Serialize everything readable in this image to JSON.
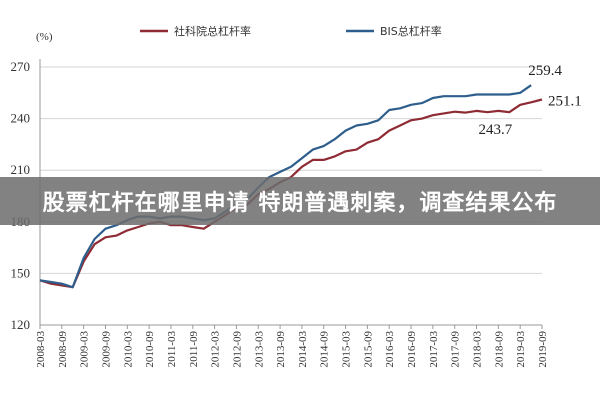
{
  "banner": {
    "text": "股票杠杆在哪里申请 特朗普遇刺案，调查结果公布"
  },
  "chart_data": {
    "type": "line",
    "unit_label": "(%)",
    "ylim": [
      120,
      270
    ],
    "yticks": [
      120,
      150,
      180,
      210,
      240,
      270
    ],
    "grid": "horizontal",
    "legend_position": "top",
    "x": [
      "2008-03",
      "2008-09",
      "2009-03",
      "2009-09",
      "2010-03",
      "2010-09",
      "2011-03",
      "2011-09",
      "2012-03",
      "2012-09",
      "2013-03",
      "2013-09",
      "2014-03",
      "2014-09",
      "2015-03",
      "2015-09",
      "2016-03",
      "2016-09",
      "2017-03",
      "2017-09",
      "2018-03",
      "2018-09",
      "2019-03",
      "2019-09"
    ],
    "series": [
      {
        "name": "社科院总杠杆率",
        "color": "#8e2b34",
        "points": [
          [
            "2008-03",
            146
          ],
          [
            "2008-06",
            144
          ],
          [
            "2008-09",
            143
          ],
          [
            "2008-12",
            142
          ],
          [
            "2009-03",
            157
          ],
          [
            "2009-06",
            167
          ],
          [
            "2009-09",
            171
          ],
          [
            "2009-12",
            172
          ],
          [
            "2010-03",
            175
          ],
          [
            "2010-06",
            177
          ],
          [
            "2010-09",
            179
          ],
          [
            "2010-12",
            180
          ],
          [
            "2011-03",
            178
          ],
          [
            "2011-06",
            178
          ],
          [
            "2011-09",
            177
          ],
          [
            "2011-12",
            176
          ],
          [
            "2012-03",
            180
          ],
          [
            "2012-06",
            184
          ],
          [
            "2012-09",
            188
          ],
          [
            "2012-12",
            190
          ],
          [
            "2013-03",
            196
          ],
          [
            "2013-06",
            199
          ],
          [
            "2013-09",
            203
          ],
          [
            "2013-12",
            206
          ],
          [
            "2014-03",
            212
          ],
          [
            "2014-06",
            216
          ],
          [
            "2014-09",
            216
          ],
          [
            "2014-12",
            218
          ],
          [
            "2015-03",
            221
          ],
          [
            "2015-06",
            222
          ],
          [
            "2015-09",
            226
          ],
          [
            "2015-12",
            228
          ],
          [
            "2016-03",
            233
          ],
          [
            "2016-06",
            236
          ],
          [
            "2016-09",
            239
          ],
          [
            "2016-12",
            240
          ],
          [
            "2017-03",
            242
          ],
          [
            "2017-06",
            243
          ],
          [
            "2017-09",
            244
          ],
          [
            "2017-12",
            243.5
          ],
          [
            "2018-03",
            244.5
          ],
          [
            "2018-06",
            243.7
          ],
          [
            "2018-09",
            244.5
          ],
          [
            "2018-12",
            243.7
          ],
          [
            "2019-03",
            248
          ],
          [
            "2019-06",
            249.5
          ],
          [
            "2019-09",
            251.1
          ]
        ]
      },
      {
        "name": "BIS总杠杆率",
        "color": "#2e5e8c",
        "points": [
          [
            "2008-03",
            146
          ],
          [
            "2008-06",
            145
          ],
          [
            "2008-09",
            144
          ],
          [
            "2008-12",
            142
          ],
          [
            "2009-03",
            159
          ],
          [
            "2009-06",
            170
          ],
          [
            "2009-09",
            176
          ],
          [
            "2009-12",
            178
          ],
          [
            "2010-03",
            181
          ],
          [
            "2010-06",
            183
          ],
          [
            "2010-09",
            183
          ],
          [
            "2010-12",
            182
          ],
          [
            "2011-03",
            183
          ],
          [
            "2011-06",
            183
          ],
          [
            "2011-09",
            182
          ],
          [
            "2011-12",
            181
          ],
          [
            "2012-03",
            182
          ],
          [
            "2012-06",
            186
          ],
          [
            "2012-09",
            190
          ],
          [
            "2012-12",
            193
          ],
          [
            "2013-03",
            200
          ],
          [
            "2013-06",
            206
          ],
          [
            "2013-09",
            209
          ],
          [
            "2013-12",
            212
          ],
          [
            "2014-03",
            217
          ],
          [
            "2014-06",
            222
          ],
          [
            "2014-09",
            224
          ],
          [
            "2014-12",
            228
          ],
          [
            "2015-03",
            233
          ],
          [
            "2015-06",
            236
          ],
          [
            "2015-09",
            237
          ],
          [
            "2015-12",
            239
          ],
          [
            "2016-03",
            245
          ],
          [
            "2016-06",
            246
          ],
          [
            "2016-09",
            248
          ],
          [
            "2016-12",
            249
          ],
          [
            "2017-03",
            252
          ],
          [
            "2017-06",
            253
          ],
          [
            "2017-09",
            253
          ],
          [
            "2017-12",
            253
          ],
          [
            "2018-03",
            254
          ],
          [
            "2018-06",
            254
          ],
          [
            "2018-09",
            254
          ],
          [
            "2018-12",
            254
          ],
          [
            "2019-03",
            255
          ],
          [
            "2019-06",
            259.4
          ]
        ]
      }
    ],
    "annotations": [
      {
        "text": "259.4",
        "at": [
          "2019-06",
          259.4
        ],
        "anchor": "above"
      },
      {
        "text": "251.1",
        "at": [
          "2019-09",
          251.1
        ],
        "anchor": "right"
      },
      {
        "text": "243.7",
        "at": [
          "2018-06",
          243.7
        ],
        "anchor": "below"
      }
    ]
  }
}
